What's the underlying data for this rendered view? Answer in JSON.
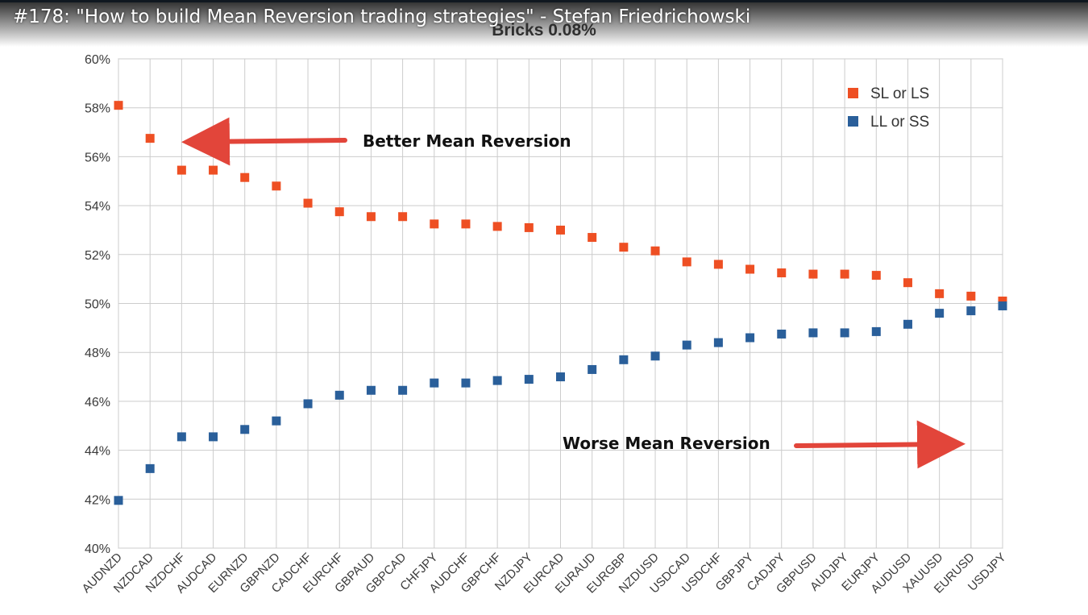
{
  "video": {
    "title": "#178: \"How to build Mean Reversion trading strategies\" - Stefan Friedrichowski"
  },
  "colors": {
    "sl_or_ls": "#ee4f23",
    "ll_or_ss": "#2a5f9a",
    "grid": "#cccccc",
    "annotation_arrow": "#e2453a"
  },
  "chart_data": {
    "type": "scatter",
    "title": "Bricks 0.08%",
    "xlabel": "",
    "ylabel": "",
    "ylim": [
      40,
      60
    ],
    "y_ticks": [
      "40%",
      "42%",
      "44%",
      "46%",
      "48%",
      "50%",
      "52%",
      "54%",
      "56%",
      "58%",
      "60%"
    ],
    "grid": true,
    "legend_position": "top-right",
    "categories": [
      "AUDNZD",
      "NZDCAD",
      "NZDCHF",
      "AUDCAD",
      "EURNZD",
      "GBPNZD",
      "CADCHF",
      "EURCHF",
      "GBPAUD",
      "GBPCAD",
      "CHFJPY",
      "AUDCHF",
      "GBPCHF",
      "NZDJPY",
      "EURCAD",
      "EURAUD",
      "EURGBP",
      "NZDUSD",
      "USDCAD",
      "USDCHF",
      "GBPJPY",
      "CADJPY",
      "GBPUSD",
      "AUDJPY",
      "EURJPY",
      "AUDUSD",
      "XAUUSD",
      "EURUSD",
      "USDJPY"
    ],
    "series": [
      {
        "name": "SL or LS",
        "color": "#ee4f23",
        "values": [
          58.1,
          56.75,
          55.45,
          55.45,
          55.15,
          54.8,
          54.1,
          53.75,
          53.55,
          53.55,
          53.25,
          53.25,
          53.15,
          53.1,
          53.0,
          52.7,
          52.3,
          52.15,
          51.7,
          51.6,
          51.4,
          51.25,
          51.2,
          51.2,
          51.15,
          50.85,
          50.4,
          50.3,
          50.1
        ]
      },
      {
        "name": "LL or SS",
        "color": "#2a5f9a",
        "values": [
          41.95,
          43.25,
          44.55,
          44.55,
          44.85,
          45.2,
          45.9,
          46.25,
          46.45,
          46.45,
          46.75,
          46.75,
          46.85,
          46.9,
          47.0,
          47.3,
          47.7,
          47.85,
          48.3,
          48.4,
          48.6,
          48.75,
          48.8,
          48.8,
          48.85,
          49.15,
          49.6,
          49.7,
          49.9
        ]
      }
    ],
    "annotations": [
      {
        "text": "Better Mean Reversion",
        "arrow_direction": "left",
        "near_category": "NZDCHF",
        "near_value": 56.75
      },
      {
        "text": "Worse Mean Reversion",
        "arrow_direction": "right",
        "near_category": "EURUSD",
        "near_value": 43.4
      }
    ]
  }
}
